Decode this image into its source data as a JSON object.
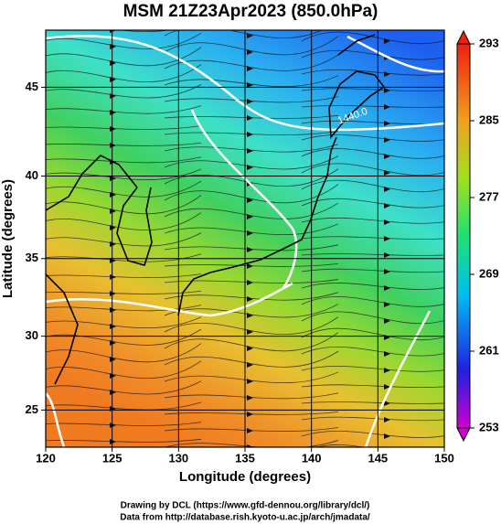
{
  "title": "MSM 21Z23Apr2023 (850.0hPa)",
  "map": {
    "xlabel": "Longitude (degrees)",
    "ylabel": "Latitude  (degrees)",
    "xlim": [
      120,
      150
    ],
    "ylim": [
      22.4,
      48
    ],
    "xticks": [
      120,
      125,
      130,
      135,
      140,
      145,
      150
    ],
    "yticks": [
      25,
      30,
      35,
      40,
      45
    ],
    "contour_label": "1440.0"
  },
  "colorbar": {
    "lim": [
      253,
      293
    ],
    "ticks": [
      253,
      261,
      269,
      277,
      285,
      293
    ]
  },
  "credits": [
    "Drawing by DCL (https://www.gfd-dennou.org/library/dcl/)",
    "Data from http://database.rish.kyoto-u.ac.jp/arch/jmadata/"
  ]
}
